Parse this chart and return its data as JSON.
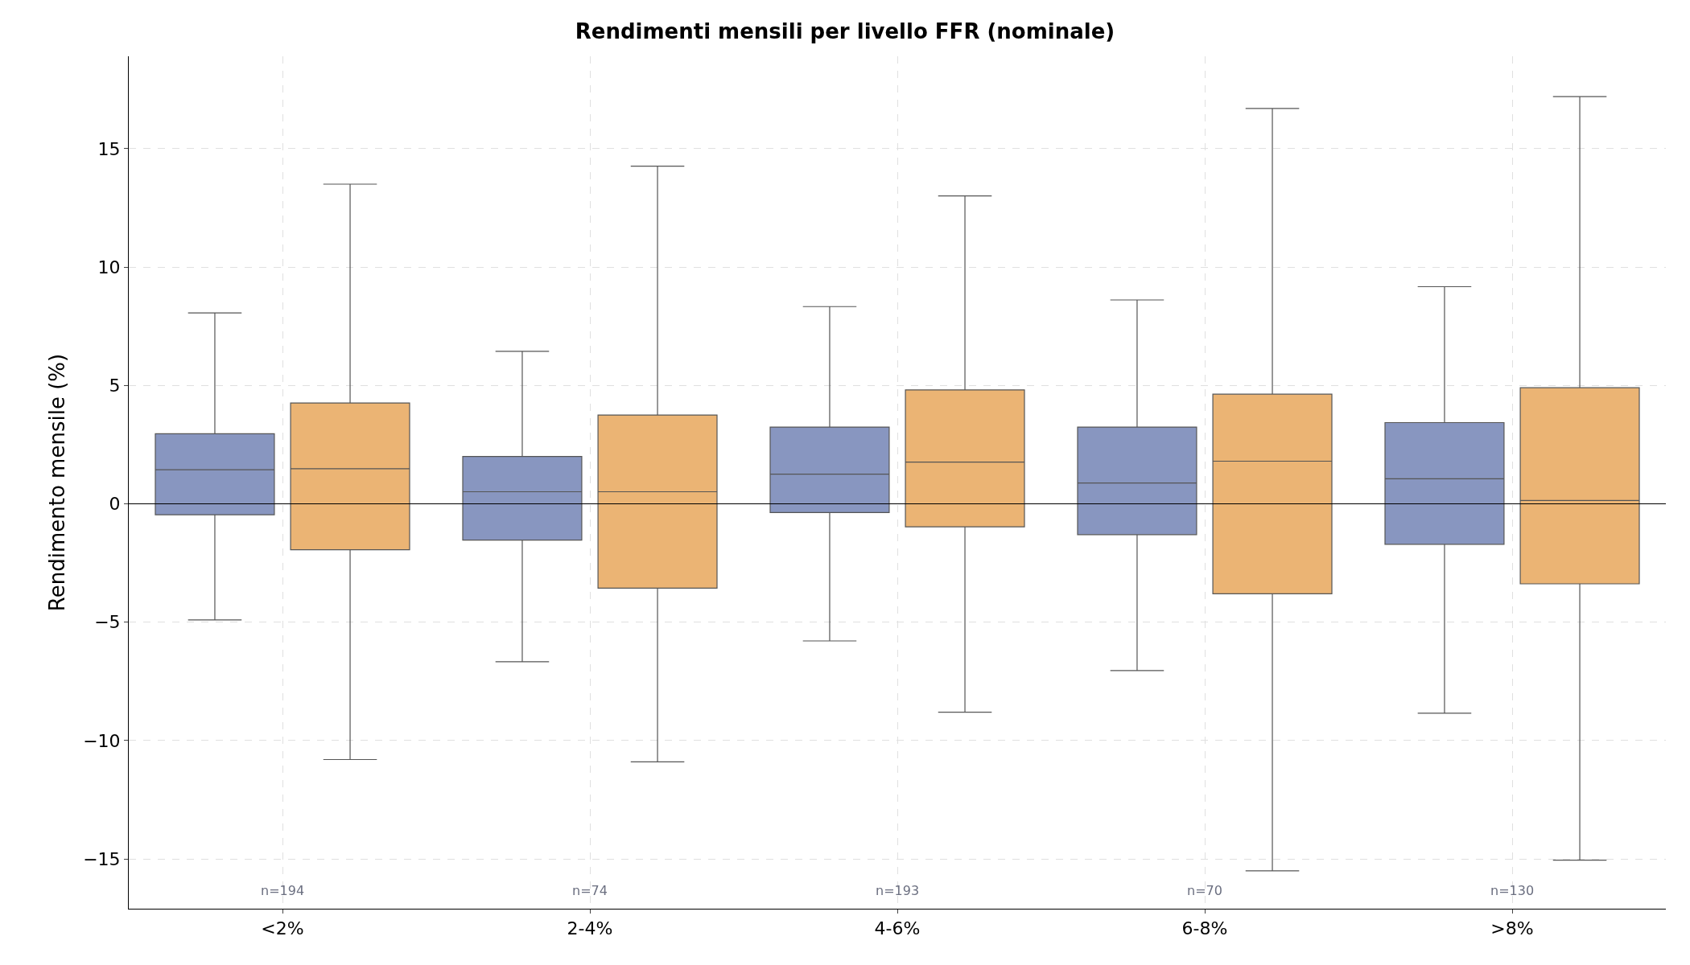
{
  "chart_data": {
    "type": "box",
    "title": "Rendimenti mensili per livello FFR (nominale)",
    "ylabel": "Rendimento mensile (%)",
    "categories": [
      "<2%",
      "2-4%",
      "4-6%",
      "6-8%",
      ">8%"
    ],
    "series": [
      {
        "color": "#8896c0",
        "boxes": [
          {
            "low": -4.9,
            "q1": -0.46,
            "median": 1.44,
            "q3": 2.96,
            "high": 8.06
          },
          {
            "low": -6.67,
            "q1": -1.53,
            "median": 0.51,
            "q3": 2.0,
            "high": 6.44
          },
          {
            "low": -5.79,
            "q1": -0.37,
            "median": 1.25,
            "q3": 3.24,
            "high": 8.33
          },
          {
            "low": -7.04,
            "q1": -1.3,
            "median": 0.88,
            "q3": 3.24,
            "high": 8.61
          },
          {
            "low": -8.84,
            "q1": -1.71,
            "median": 1.06,
            "q3": 3.43,
            "high": 9.17
          }
        ]
      },
      {
        "color": "#ebb474",
        "boxes": [
          {
            "low": -10.8,
            "q1": -1.94,
            "median": 1.48,
            "q3": 4.26,
            "high": 13.5
          },
          {
            "low": -10.9,
            "q1": -3.56,
            "median": 0.51,
            "q3": 3.75,
            "high": 14.26
          },
          {
            "low": -8.8,
            "q1": -0.97,
            "median": 1.76,
            "q3": 4.81,
            "high": 13.0
          },
          {
            "low": -15.5,
            "q1": -3.8,
            "median": 1.8,
            "q3": 4.63,
            "high": 16.7
          },
          {
            "low": -15.05,
            "q1": -3.38,
            "median": 0.14,
            "q3": 4.9,
            "high": 17.2
          }
        ]
      }
    ],
    "ylim": [
      -17.1,
      18.9
    ],
    "yticks": [
      {
        "value": -15,
        "label": "−15"
      },
      {
        "value": -10,
        "label": "−10"
      },
      {
        "value": -5,
        "label": "−5"
      },
      0,
      5,
      10,
      15
    ],
    "grid": true,
    "ref_lines": [
      {
        "axis": "y",
        "value": 0,
        "color": "#000000"
      }
    ],
    "annotations": [
      "n=194",
      "n=74",
      "n=193",
      "n=70",
      "n=130"
    ]
  }
}
